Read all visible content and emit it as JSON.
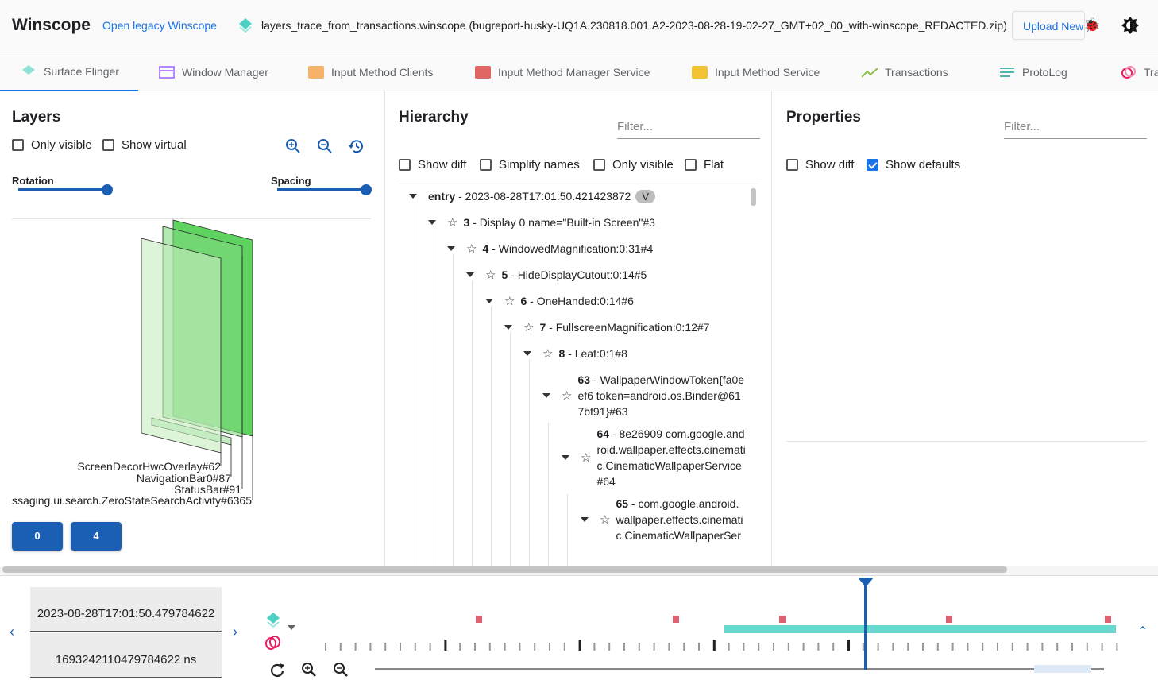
{
  "header": {
    "title": "Winscope",
    "legacy_link": "Open legacy Winscope",
    "file_name": "layers_trace_from_transactions.winscope (bugreport-husky-UQ1A.230818.001.A2-2023-08-28-19-02-27_GMT+02_00_with-winscope_REDACTED.zip)",
    "upload_label": "Upload New",
    "icons": [
      "layers-icon",
      "bug-icon",
      "theme-toggle-icon"
    ]
  },
  "tabs": [
    {
      "label": "Surface Flinger",
      "icon": "layers-icon",
      "color": "#4dd0c4",
      "active": true
    },
    {
      "label": "Window Manager",
      "icon": "window-icon",
      "color": "#b388ff"
    },
    {
      "label": "Input Method Clients",
      "icon": "keyboard-icon",
      "color": "#f6b26b"
    },
    {
      "label": "Input Method Manager Service",
      "icon": "keyboard-icon",
      "color": "#e06666"
    },
    {
      "label": "Input Method Service",
      "icon": "keyboard-icon",
      "color": "#f1c232"
    },
    {
      "label": "Transactions",
      "icon": "chart-line-icon",
      "color": "#8bc34a"
    },
    {
      "label": "ProtoLog",
      "icon": "list-icon",
      "color": "#4db6ac"
    },
    {
      "label": "Tra",
      "icon": "rings-icon",
      "color": "#e91e63"
    }
  ],
  "layers": {
    "title": "Layers",
    "only_visible": {
      "label": "Only visible",
      "checked": false
    },
    "show_virtual": {
      "label": "Show virtual",
      "checked": false
    },
    "rotation": {
      "label": "Rotation",
      "value": 1.0
    },
    "spacing": {
      "label": "Spacing",
      "value": 1.0
    },
    "labels": [
      "ScreenDecorHwcOverlay#62",
      "NavigationBar0#87",
      "StatusBar#91",
      "ssaging.ui.search.ZeroStateSearchActivity#6365"
    ],
    "display_buttons": [
      "0",
      "4"
    ]
  },
  "hierarchy": {
    "title": "Hierarchy",
    "filter_placeholder": "Filter...",
    "options": [
      {
        "label": "Show diff",
        "checked": false
      },
      {
        "label": "Simplify names",
        "checked": false
      },
      {
        "label": "Only visible",
        "checked": false
      },
      {
        "label": "Flat",
        "checked": false
      }
    ],
    "entry": {
      "label": "entry",
      "time": " - 2023-08-28T17:01:50.421423872",
      "badge": "V"
    },
    "nodes": [
      {
        "id": "3",
        "name": " - Display 0 name=\"Built-in Screen\"#3"
      },
      {
        "id": "4",
        "name": " - WindowedMagnification:0:31#4"
      },
      {
        "id": "5",
        "name": " - HideDisplayCutout:0:14#5"
      },
      {
        "id": "6",
        "name": " - OneHanded:0:14#6"
      },
      {
        "id": "7",
        "name": " - FullscreenMagnification:0:12#7"
      },
      {
        "id": "8",
        "name": " - Leaf:0:1#8"
      },
      {
        "id": "63",
        "name": " - WallpaperWindowToken{fa0eef6 token=android.os.Binder@617bf91}#63"
      },
      {
        "id": "64",
        "name": " - 8e26909 com.google.android.wallpaper.effects.cinematic.CinematicWallpaperService#64"
      },
      {
        "id": "65",
        "name": " - com.google.android.wallpaper.effects.cinematic.CinematicWallpaperSer"
      }
    ]
  },
  "properties": {
    "title": "Properties",
    "filter_placeholder": "Filter...",
    "options": [
      {
        "label": "Show diff",
        "checked": false
      },
      {
        "label": "Show defaults",
        "checked": true
      }
    ]
  },
  "timeline": {
    "timestamp": "2023-08-28T17:01:50.479784622",
    "timestamp_ns": "1693242110479784622 ns",
    "colors": {
      "cursor": "#1a5fb4",
      "transactions": "#e06070",
      "layers": "#4dd0c4"
    }
  }
}
